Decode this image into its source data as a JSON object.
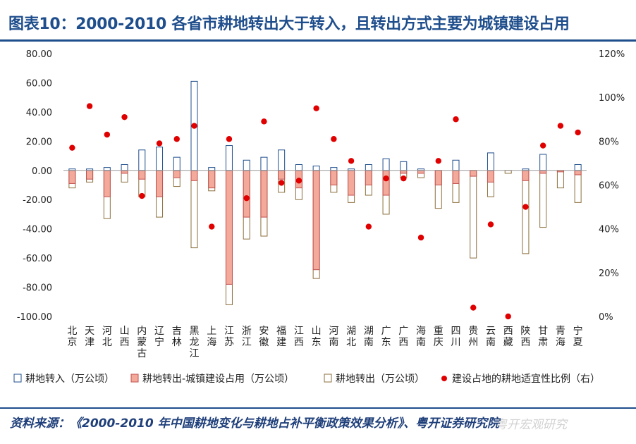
{
  "title": "图表10：2000-2010 各省市耕地转出大于转入，且转出方式主要为城镇建设占用",
  "source": "资料来源：《2000-2010 年中国耕地变化与耕地占补平衡政策效果分析》、粤开证券研究院",
  "watermark": "粤开宏观研究",
  "colors": {
    "title": "#1f4e8c",
    "transfer_in": "#1f4e8c",
    "urban_fill": "#f4aa9b",
    "urban_stroke": "#c0504d",
    "transfer_out": "#8b6f3c",
    "ratio": "#e00000"
  },
  "chart_data": {
    "type": "bar",
    "categories": [
      "北京",
      "天津",
      "河北",
      "山西",
      "内蒙古",
      "辽宁",
      "吉林",
      "黑龙江",
      "上海",
      "江苏",
      "浙江",
      "安徽",
      "福建",
      "江西",
      "山东",
      "河南",
      "湖北",
      "湖南",
      "广东",
      "广西",
      "海南",
      "重庆",
      "四川",
      "贵州",
      "云南",
      "西藏",
      "陕西",
      "甘肃",
      "青海",
      "宁夏"
    ],
    "y_left": {
      "min": -100,
      "max": 80,
      "step": 20,
      "tick_labels": [
        "-100.00",
        "-80.00",
        "-60.00",
        "-40.00",
        "-20.00",
        "0.00",
        "20.00",
        "40.00",
        "60.00",
        "80.00"
      ]
    },
    "y_right": {
      "min": 0,
      "max": 120,
      "step": 20,
      "tick_labels": [
        "0%",
        "20%",
        "40%",
        "60%",
        "80%",
        "100%",
        "120%"
      ]
    },
    "series": [
      {
        "name": "耕地转入（万公顷）",
        "kind": "in",
        "values": [
          1,
          1,
          2,
          4,
          14,
          16,
          9,
          61,
          2,
          17,
          7,
          9,
          14,
          4,
          3,
          2,
          1,
          4,
          8,
          6,
          1,
          0,
          7,
          0,
          12,
          0,
          1,
          11,
          0,
          4
        ]
      },
      {
        "name": "耕地转出-城镇建设占用（万公顷）",
        "kind": "urban",
        "values": [
          -9,
          -6,
          -18,
          -2,
          -6,
          -18,
          -5,
          -7,
          -12,
          -78,
          -32,
          -32,
          -6,
          -12,
          -68,
          -10,
          -17,
          -10,
          -17,
          -2,
          -2,
          -10,
          -9,
          -4,
          -8,
          0,
          -7,
          -2,
          -1,
          -3
        ]
      },
      {
        "name": "耕地转出（万公顷）",
        "kind": "out",
        "values": [
          -12,
          -8,
          -33,
          -8,
          -18,
          -32,
          -11,
          -53,
          -14,
          -92,
          -47,
          -45,
          -15,
          -20,
          -74,
          -15,
          -22,
          -17,
          -30,
          -5,
          -5,
          -26,
          -22,
          -60,
          -18,
          -2,
          -57,
          -39,
          -12,
          -22
        ]
      },
      {
        "name": "建设占地的耕地适宜性比例（右）",
        "kind": "ratio",
        "values": [
          77,
          96,
          83,
          91,
          55,
          79,
          81,
          87,
          41,
          81,
          54,
          89,
          61,
          62,
          95,
          81,
          71,
          41,
          63,
          63,
          36,
          71,
          90,
          4,
          42,
          0,
          50,
          78,
          87,
          84
        ]
      }
    ]
  }
}
